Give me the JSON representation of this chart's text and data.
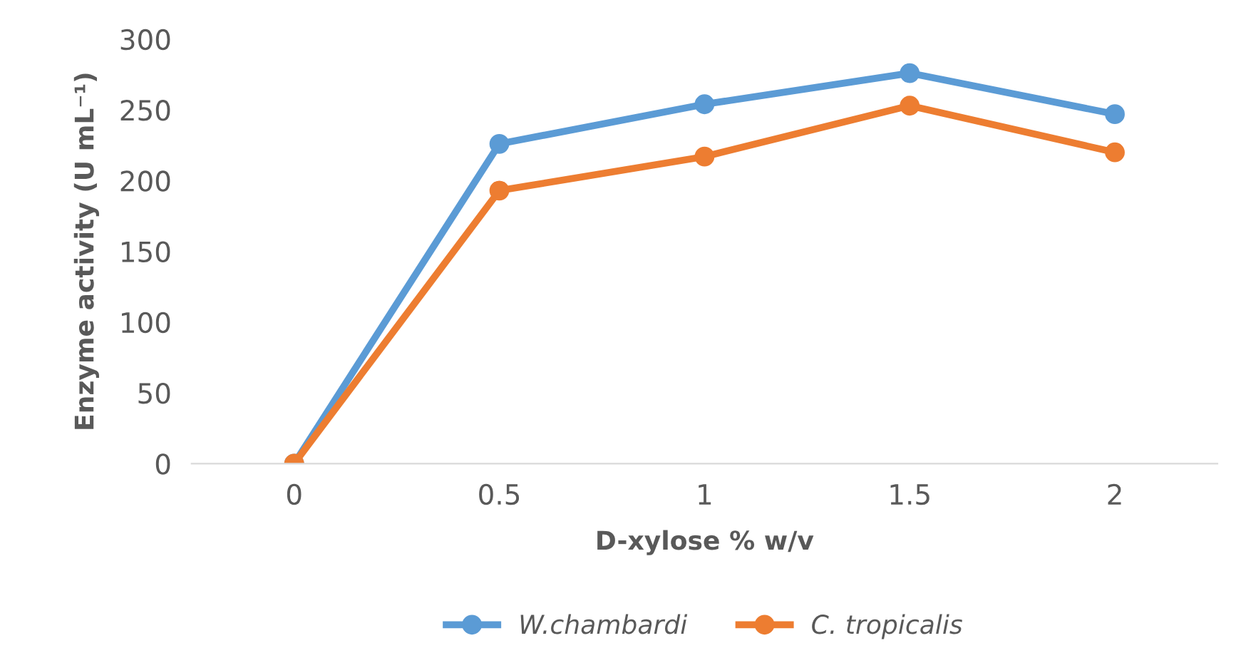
{
  "chart_data": {
    "type": "line",
    "xlabel": "D-xylose % w/v",
    "ylabel": "Enzyme activity (U mL⁻¹)",
    "categories": [
      "0",
      "0.5",
      "1",
      "1.5",
      "2"
    ],
    "series": [
      {
        "name": "W.chambardi",
        "color": "#5b9bd5",
        "values": [
          0,
          226,
          254,
          276,
          247
        ]
      },
      {
        "name": "C. tropicalis",
        "color": "#ed7d31",
        "values": [
          0,
          193,
          217,
          253,
          220
        ]
      }
    ],
    "ylim": [
      0,
      300
    ],
    "yticks": [
      0,
      50,
      100,
      150,
      200,
      250,
      300
    ],
    "marker": "circle",
    "line_style": "solid",
    "legend": "bottom",
    "grid": false
  }
}
